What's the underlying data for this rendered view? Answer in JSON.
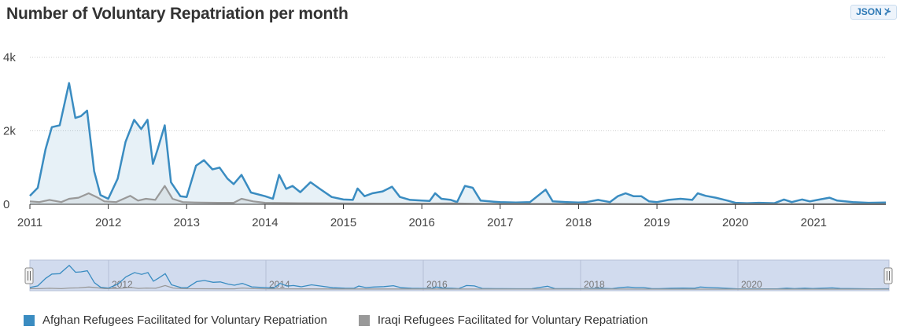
{
  "page": {
    "title": "Number of Voluntary Repatriation per month",
    "json_button_label": "JSON",
    "json_button_icon": "rss-icon"
  },
  "chart_data": {
    "type": "area",
    "title": "Number of Voluntary Repatriation per month",
    "xlabel": "",
    "ylabel": "",
    "y_ticks": [
      "0",
      "2k",
      "4k"
    ],
    "ylim": [
      0,
      4000
    ],
    "x_range": [
      2011.0,
      2021.92
    ],
    "x_ticks": [
      "2011",
      "2012",
      "2013",
      "2014",
      "2015",
      "2016",
      "2017",
      "2018",
      "2019",
      "2020",
      "2021"
    ],
    "navigator_ticks": [
      "2012",
      "2014",
      "2016",
      "2018",
      "2020"
    ],
    "grid": true,
    "legend_position": "bottom-left",
    "series": [
      {
        "name": "Afghan Refugees Facilitated for Voluntary Repatriation",
        "color": "#3a8cc1",
        "points": [
          [
            2011.0,
            230
          ],
          [
            2011.1,
            450
          ],
          [
            2011.2,
            1500
          ],
          [
            2011.28,
            2100
          ],
          [
            2011.38,
            2150
          ],
          [
            2011.5,
            3300
          ],
          [
            2011.58,
            2350
          ],
          [
            2011.65,
            2400
          ],
          [
            2011.73,
            2550
          ],
          [
            2011.82,
            900
          ],
          [
            2011.9,
            250
          ],
          [
            2012.0,
            150
          ],
          [
            2012.12,
            700
          ],
          [
            2012.22,
            1700
          ],
          [
            2012.33,
            2300
          ],
          [
            2012.42,
            2050
          ],
          [
            2012.5,
            2300
          ],
          [
            2012.57,
            1100
          ],
          [
            2012.63,
            1500
          ],
          [
            2012.72,
            2150
          ],
          [
            2012.8,
            600
          ],
          [
            2012.92,
            220
          ],
          [
            2013.0,
            200
          ],
          [
            2013.12,
            1050
          ],
          [
            2013.22,
            1200
          ],
          [
            2013.33,
            950
          ],
          [
            2013.42,
            1000
          ],
          [
            2013.52,
            700
          ],
          [
            2013.6,
            550
          ],
          [
            2013.7,
            800
          ],
          [
            2013.82,
            320
          ],
          [
            2014.0,
            220
          ],
          [
            2014.1,
            150
          ],
          [
            2014.18,
            800
          ],
          [
            2014.27,
            420
          ],
          [
            2014.35,
            500
          ],
          [
            2014.45,
            330
          ],
          [
            2014.58,
            600
          ],
          [
            2014.7,
            420
          ],
          [
            2014.85,
            200
          ],
          [
            2015.0,
            130
          ],
          [
            2015.12,
            120
          ],
          [
            2015.18,
            430
          ],
          [
            2015.27,
            220
          ],
          [
            2015.37,
            300
          ],
          [
            2015.5,
            350
          ],
          [
            2015.62,
            480
          ],
          [
            2015.72,
            200
          ],
          [
            2015.85,
            120
          ],
          [
            2016.0,
            100
          ],
          [
            2016.1,
            90
          ],
          [
            2016.17,
            300
          ],
          [
            2016.25,
            150
          ],
          [
            2016.37,
            120
          ],
          [
            2016.45,
            60
          ],
          [
            2016.55,
            500
          ],
          [
            2016.65,
            450
          ],
          [
            2016.75,
            100
          ],
          [
            2016.92,
            70
          ],
          [
            2017.0,
            60
          ],
          [
            2017.2,
            50
          ],
          [
            2017.38,
            60
          ],
          [
            2017.58,
            400
          ],
          [
            2017.67,
            80
          ],
          [
            2017.85,
            60
          ],
          [
            2018.0,
            50
          ],
          [
            2018.1,
            60
          ],
          [
            2018.25,
            120
          ],
          [
            2018.4,
            60
          ],
          [
            2018.5,
            220
          ],
          [
            2018.6,
            300
          ],
          [
            2018.7,
            220
          ],
          [
            2018.8,
            220
          ],
          [
            2018.9,
            80
          ],
          [
            2019.0,
            60
          ],
          [
            2019.15,
            120
          ],
          [
            2019.3,
            150
          ],
          [
            2019.45,
            120
          ],
          [
            2019.52,
            300
          ],
          [
            2019.62,
            230
          ],
          [
            2019.75,
            180
          ],
          [
            2019.9,
            100
          ],
          [
            2020.0,
            40
          ],
          [
            2020.15,
            30
          ],
          [
            2020.3,
            40
          ],
          [
            2020.5,
            30
          ],
          [
            2020.62,
            130
          ],
          [
            2020.72,
            60
          ],
          [
            2020.85,
            130
          ],
          [
            2020.95,
            80
          ],
          [
            2021.05,
            120
          ],
          [
            2021.2,
            180
          ],
          [
            2021.3,
            100
          ],
          [
            2021.5,
            60
          ],
          [
            2021.7,
            40
          ],
          [
            2021.92,
            50
          ]
        ]
      },
      {
        "name": "Iraqi Refugees Facilitated for Voluntary Repatriation",
        "color": "#999999",
        "points": [
          [
            2011.0,
            80
          ],
          [
            2011.12,
            60
          ],
          [
            2011.25,
            120
          ],
          [
            2011.4,
            60
          ],
          [
            2011.5,
            150
          ],
          [
            2011.62,
            180
          ],
          [
            2011.75,
            300
          ],
          [
            2011.85,
            200
          ],
          [
            2011.95,
            80
          ],
          [
            2012.1,
            60
          ],
          [
            2012.28,
            230
          ],
          [
            2012.38,
            100
          ],
          [
            2012.48,
            150
          ],
          [
            2012.6,
            120
          ],
          [
            2012.72,
            500
          ],
          [
            2012.82,
            150
          ],
          [
            2012.95,
            60
          ],
          [
            2013.1,
            50
          ],
          [
            2013.4,
            40
          ],
          [
            2013.6,
            40
          ],
          [
            2013.7,
            150
          ],
          [
            2013.85,
            80
          ],
          [
            2014.0,
            40
          ],
          [
            2014.5,
            30
          ],
          [
            2015.0,
            25
          ],
          [
            2015.5,
            20
          ],
          [
            2016.0,
            20
          ],
          [
            2016.4,
            25
          ],
          [
            2016.7,
            15
          ],
          [
            2017.0,
            10
          ],
          [
            2017.5,
            10
          ],
          [
            2018.0,
            8
          ],
          [
            2018.5,
            8
          ],
          [
            2019.0,
            5
          ],
          [
            2019.5,
            5
          ],
          [
            2020.0,
            5
          ],
          [
            2020.5,
            5
          ],
          [
            2021.0,
            5
          ],
          [
            2021.5,
            5
          ],
          [
            2021.92,
            5
          ]
        ]
      }
    ]
  }
}
